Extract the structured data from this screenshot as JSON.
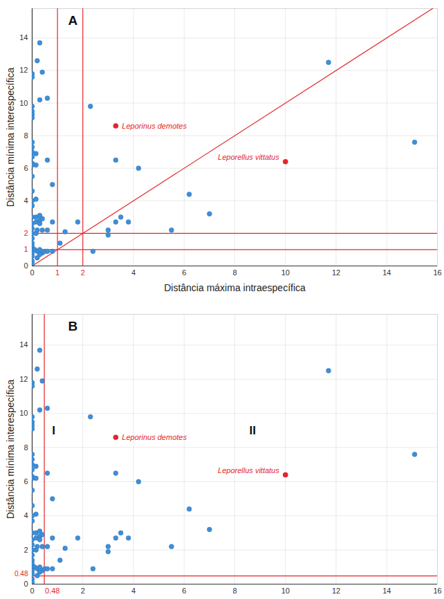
{
  "chart_data": [
    {
      "type": "scatter",
      "panel": "A",
      "xlabel": "Distância máxima intraespecífica",
      "ylabel": "Distância mínima interespecífica",
      "xlim": [
        0,
        16
      ],
      "ylim": [
        0,
        15.8
      ],
      "xticks": [
        0,
        4,
        6,
        8,
        10,
        12,
        14,
        16
      ],
      "yticks": [
        0,
        4,
        6,
        8,
        10,
        12,
        14
      ],
      "grid": true,
      "points": {
        "color": "#3d8fd9",
        "x": [
          0,
          0,
          0,
          0,
          0,
          0,
          0,
          0,
          0,
          0,
          0,
          0,
          0,
          0,
          0,
          0,
          0,
          0,
          0,
          0,
          0,
          0,
          0,
          0,
          0,
          0,
          0,
          0,
          0.15,
          0.15,
          0.15,
          0.15,
          0.15,
          0.15,
          0.2,
          0.3,
          0.3,
          0.4,
          0.6,
          0.6,
          0.8,
          0.3,
          0.3,
          0.3,
          0.4,
          0.4,
          0.6,
          0.2,
          0.8,
          0.1,
          0.2,
          0.3,
          0.4,
          0.5,
          0.6,
          0.3,
          0.8,
          0.2,
          1.1,
          1.3,
          1.8,
          2.3,
          2.4,
          3.0,
          3.0,
          3.3,
          3.3,
          3.5,
          3.8,
          4.2,
          5.5,
          6.2,
          7.0,
          11.7,
          15.1
        ],
        "y": [
          11.8,
          11.6,
          9.8,
          9.5,
          9.3,
          9.1,
          7.6,
          7.3,
          7.0,
          6.7,
          6.3,
          6.2,
          5.5,
          4.6,
          4.0,
          3.7,
          3.0,
          2.6,
          2.3,
          2.0,
          1.7,
          1.4,
          1.2,
          1.0,
          0.8,
          0.6,
          0.3,
          0.1,
          6.9,
          6.2,
          4.1,
          3.0,
          2.7,
          2.0,
          12.6,
          13.7,
          10.2,
          11.9,
          10.3,
          6.5,
          5.0,
          3.1,
          2.8,
          2.6,
          2.9,
          2.2,
          2.2,
          2.2,
          2.7,
          1.0,
          0.9,
          1.0,
          0.8,
          0.9,
          0.9,
          0.7,
          0.9,
          0.5,
          1.4,
          2.1,
          2.7,
          9.8,
          0.9,
          1.9,
          2.2,
          2.7,
          6.5,
          3.0,
          2.7,
          6.0,
          2.2,
          4.4,
          3.2,
          12.5,
          7.6
        ]
      },
      "highlighted": [
        {
          "label": "Leporinus demotes",
          "x": 3.3,
          "y": 8.6,
          "color": "#e3262a"
        },
        {
          "label": "Leporellus vittatus",
          "x": 10.0,
          "y": 6.4,
          "color": "#e3262a"
        }
      ],
      "reference_lines": [
        {
          "type": "vertical",
          "value": 1,
          "color": "#e3262a"
        },
        {
          "type": "vertical",
          "value": 2,
          "color": "#e3262a"
        },
        {
          "type": "horizontal",
          "value": 1,
          "color": "#e3262a"
        },
        {
          "type": "horizontal",
          "value": 2,
          "color": "#e3262a"
        },
        {
          "type": "diagonal",
          "color": "#e3262a"
        }
      ],
      "annotations": []
    },
    {
      "type": "scatter",
      "panel": "B",
      "ylabel": "Distância mínima interespecífica",
      "xlim": [
        0,
        16
      ],
      "ylim": [
        0,
        15.8
      ],
      "xticks": [
        0,
        2,
        4,
        6,
        8,
        10,
        12,
        14,
        16
      ],
      "yticks": [
        0,
        2,
        4,
        6,
        8,
        10,
        12,
        14
      ],
      "grid": true,
      "points": {
        "color": "#3d8fd9",
        "x": [
          0,
          0,
          0,
          0,
          0,
          0,
          0,
          0,
          0,
          0,
          0,
          0,
          0,
          0,
          0,
          0,
          0,
          0,
          0,
          0,
          0,
          0,
          0,
          0,
          0,
          0,
          0,
          0,
          0.15,
          0.15,
          0.15,
          0.15,
          0.15,
          0.15,
          0.2,
          0.3,
          0.3,
          0.4,
          0.6,
          0.6,
          0.8,
          0.3,
          0.3,
          0.3,
          0.4,
          0.4,
          0.6,
          0.2,
          0.8,
          0.1,
          0.2,
          0.3,
          0.4,
          0.5,
          0.6,
          0.3,
          0.8,
          0.2,
          1.1,
          1.3,
          1.8,
          2.3,
          2.4,
          3.0,
          3.0,
          3.3,
          3.3,
          3.5,
          3.8,
          4.2,
          5.5,
          6.2,
          7.0,
          11.7,
          15.1
        ],
        "y": [
          11.8,
          11.6,
          9.8,
          9.5,
          9.3,
          9.1,
          7.6,
          7.3,
          7.0,
          6.7,
          6.3,
          6.2,
          5.5,
          4.6,
          4.0,
          3.7,
          3.0,
          2.6,
          2.3,
          2.0,
          1.7,
          1.4,
          1.2,
          1.0,
          0.8,
          0.6,
          0.3,
          0.1,
          6.9,
          6.2,
          4.1,
          3.0,
          2.7,
          2.0,
          12.6,
          13.7,
          10.2,
          11.9,
          10.3,
          6.5,
          5.0,
          3.1,
          2.8,
          2.6,
          2.9,
          2.2,
          2.2,
          2.2,
          2.7,
          1.0,
          0.9,
          1.0,
          0.8,
          0.9,
          0.9,
          0.7,
          0.9,
          0.5,
          1.4,
          2.1,
          2.7,
          9.8,
          0.9,
          1.9,
          2.2,
          2.7,
          6.5,
          3.0,
          2.7,
          6.0,
          2.2,
          4.4,
          3.2,
          12.5,
          7.6
        ]
      },
      "highlighted": [
        {
          "label": "Leporinus demotes",
          "x": 3.3,
          "y": 8.6,
          "color": "#e3262a"
        },
        {
          "label": "Leporellus vittatus",
          "x": 10.0,
          "y": 6.4,
          "color": "#e3262a"
        }
      ],
      "reference_lines": [
        {
          "type": "vertical",
          "value": 0.48,
          "color": "#e3262a"
        },
        {
          "type": "horizontal",
          "value": 0.48,
          "color": "#e3262a"
        }
      ],
      "annotations": [
        {
          "text": "I",
          "x": 0.85,
          "y": 9.0
        },
        {
          "text": "II",
          "x": 8.7,
          "y": 9.0
        }
      ]
    }
  ]
}
